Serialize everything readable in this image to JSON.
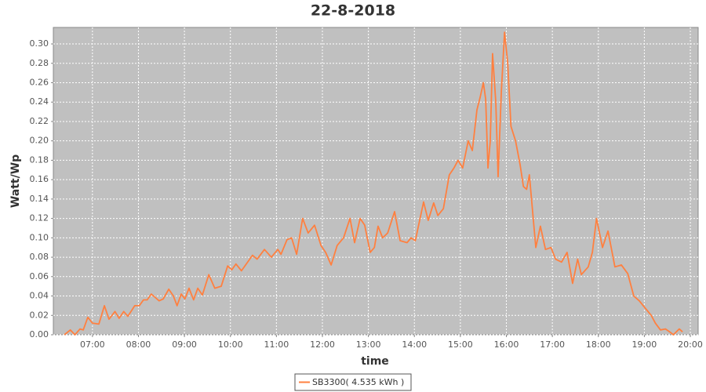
{
  "chart_data": {
    "type": "line",
    "title": "22-8-2018",
    "x_label": "time",
    "y_label": "Watt/Wp",
    "grid": true,
    "legend": "bottom",
    "xlim": [
      6.15,
      20.17
    ],
    "ylim": [
      0,
      0.317
    ],
    "xticks": [
      {
        "value": 7,
        "label": "07:00"
      },
      {
        "value": 8,
        "label": "08:00"
      },
      {
        "value": 9,
        "label": "09:00"
      },
      {
        "value": 10,
        "label": "10:00"
      },
      {
        "value": 11,
        "label": "11:00"
      },
      {
        "value": 12,
        "label": "12:00"
      },
      {
        "value": 13,
        "label": "13:00"
      },
      {
        "value": 14,
        "label": "14:00"
      },
      {
        "value": 15,
        "label": "15:00"
      },
      {
        "value": 16,
        "label": "16:00"
      },
      {
        "value": 17,
        "label": "17:00"
      },
      {
        "value": 18,
        "label": "18:00"
      },
      {
        "value": 19,
        "label": "19:00"
      },
      {
        "value": 20,
        "label": "20:00"
      }
    ],
    "yticks": [
      {
        "value": 0,
        "label": "0.00"
      },
      {
        "value": 0.02,
        "label": "0.02"
      },
      {
        "value": 0.04,
        "label": "0.04"
      },
      {
        "value": 0.06,
        "label": "0.06"
      },
      {
        "value": 0.08,
        "label": "0.08"
      },
      {
        "value": 0.1,
        "label": "0.10"
      },
      {
        "value": 0.12,
        "label": "0.12"
      },
      {
        "value": 0.14,
        "label": "0.14"
      },
      {
        "value": 0.16,
        "label": "0.16"
      },
      {
        "value": 0.18,
        "label": "0.18"
      },
      {
        "value": 0.2,
        "label": "0.20"
      },
      {
        "value": 0.22,
        "label": "0.22"
      },
      {
        "value": 0.24,
        "label": "0.24"
      },
      {
        "value": 0.26,
        "label": "0.26"
      },
      {
        "value": 0.28,
        "label": "0.28"
      },
      {
        "value": 0.3,
        "label": "0.30"
      }
    ],
    "x": [
      6.39,
      6.52,
      6.62,
      6.73,
      6.8,
      6.9,
      7.0,
      7.14,
      7.26,
      7.36,
      7.49,
      7.58,
      7.68,
      7.77,
      7.92,
      8.02,
      8.11,
      8.19,
      8.28,
      8.45,
      8.54,
      8.66,
      8.76,
      8.84,
      8.93,
      9.01,
      9.1,
      9.2,
      9.29,
      9.39,
      9.53,
      9.66,
      9.8,
      9.94,
      10.03,
      10.12,
      10.24,
      10.48,
      10.58,
      10.74,
      10.89,
      11.03,
      11.1,
      11.23,
      11.33,
      11.44,
      11.57,
      11.69,
      11.83,
      11.97,
      12.07,
      12.19,
      12.32,
      12.46,
      12.6,
      12.7,
      12.82,
      12.92,
      13.04,
      13.13,
      13.21,
      13.31,
      13.42,
      13.57,
      13.69,
      13.84,
      13.93,
      14.02,
      14.2,
      14.3,
      14.42,
      14.51,
      14.63,
      14.76,
      14.86,
      14.95,
      15.05,
      15.17,
      15.26,
      15.36,
      15.43,
      15.5,
      15.55,
      15.6,
      15.65,
      15.7,
      15.77,
      15.82,
      15.89,
      15.96,
      16.03,
      16.1,
      16.2,
      16.3,
      16.37,
      16.44,
      16.5,
      16.64,
      16.74,
      16.85,
      16.97,
      17.07,
      17.2,
      17.32,
      17.44,
      17.55,
      17.63,
      17.78,
      17.87,
      17.96,
      18.09,
      18.21,
      18.36,
      18.5,
      18.64,
      18.77,
      18.89,
      19.01,
      19.15,
      19.24,
      19.35,
      19.46,
      19.58,
      19.63,
      19.76,
      19.83
    ],
    "series": [
      {
        "name": "SB3300( 4.535 kWh )",
        "color": "#ff8040",
        "values": [
          0,
          0.005,
          0,
          0.006,
          0.005,
          0.018,
          0.012,
          0.011,
          0.03,
          0.016,
          0.024,
          0.017,
          0.024,
          0.019,
          0.03,
          0.03,
          0.036,
          0.036,
          0.042,
          0.035,
          0.037,
          0.047,
          0.04,
          0.03,
          0.042,
          0.037,
          0.048,
          0.036,
          0.048,
          0.041,
          0.062,
          0.048,
          0.05,
          0.071,
          0.067,
          0.073,
          0.066,
          0.082,
          0.078,
          0.088,
          0.08,
          0.088,
          0.083,
          0.098,
          0.1,
          0.083,
          0.12,
          0.105,
          0.113,
          0.092,
          0.085,
          0.072,
          0.092,
          0.1,
          0.12,
          0.095,
          0.12,
          0.113,
          0.085,
          0.09,
          0.112,
          0.1,
          0.105,
          0.127,
          0.097,
          0.095,
          0.1,
          0.097,
          0.137,
          0.118,
          0.136,
          0.123,
          0.13,
          0.165,
          0.172,
          0.18,
          0.172,
          0.2,
          0.19,
          0.232,
          0.245,
          0.26,
          0.243,
          0.172,
          0.2,
          0.29,
          0.24,
          0.163,
          0.25,
          0.312,
          0.28,
          0.215,
          0.2,
          0.175,
          0.153,
          0.15,
          0.165,
          0.09,
          0.112,
          0.088,
          0.09,
          0.078,
          0.075,
          0.085,
          0.053,
          0.078,
          0.062,
          0.07,
          0.085,
          0.12,
          0.09,
          0.107,
          0.07,
          0.072,
          0.063,
          0.04,
          0.035,
          0.028,
          0.02,
          0.012,
          0.005,
          0.006,
          0.002,
          0,
          0.006,
          0.003
        ]
      }
    ]
  }
}
